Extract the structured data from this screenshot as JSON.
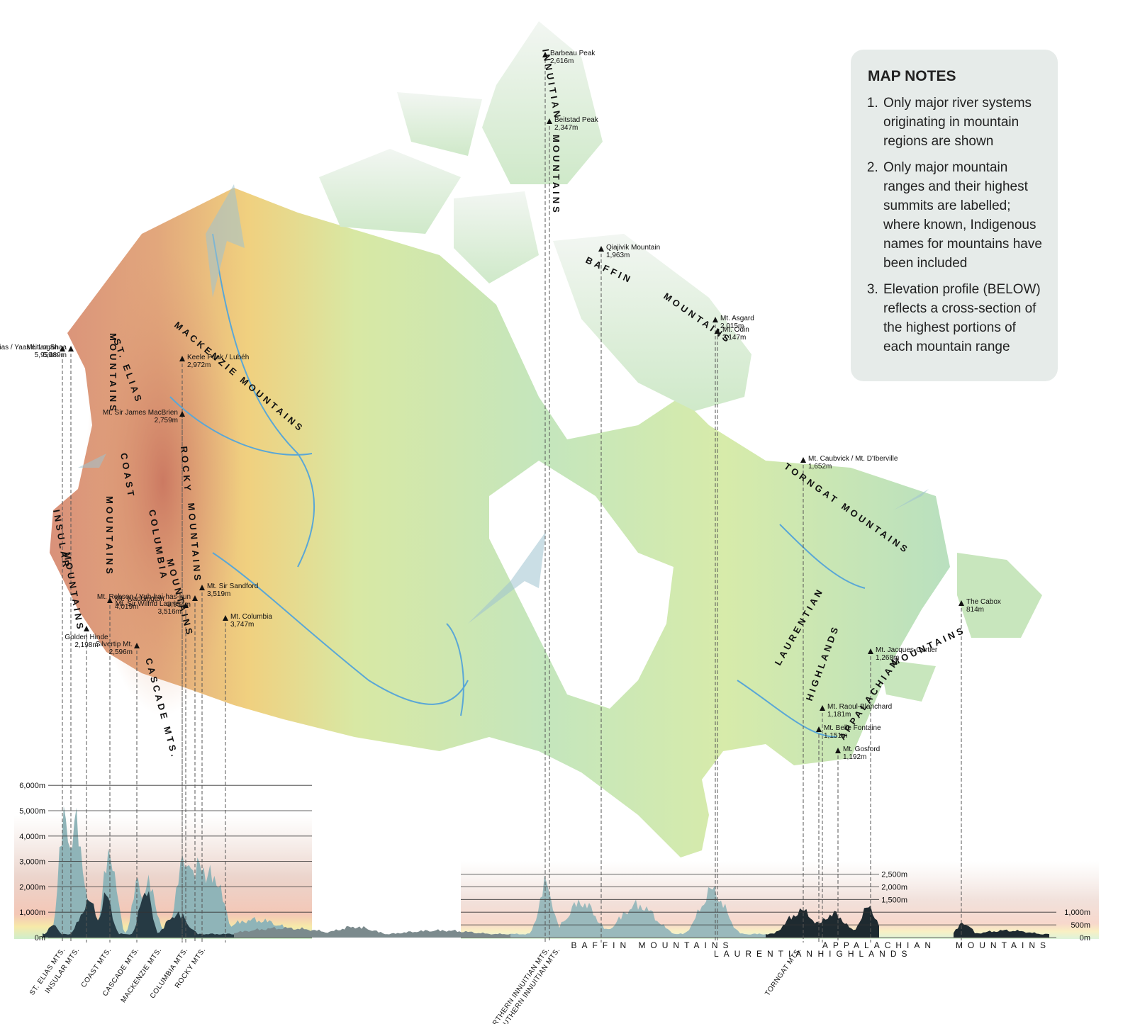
{
  "map_notes": {
    "title": "MAP NOTES",
    "notes": [
      "Only major river systems originating in mountain regions are shown",
      "Only major mountain ranges and their highest summits are labelled; where known, Indigenous names for mountains have been included",
      "Elevation profile (BELOW) reflects a cross-section of the highest portions of each mountain range"
    ]
  },
  "map": {
    "ranges": [
      "MACKENZIE MOUNTAINS",
      "ST. ELIAS",
      "MOUNTAINS",
      "COAST",
      "MOUNTAINS",
      "ROCKY",
      "MOUNTAINS",
      "COLUMBIA",
      "MOUNTAINS",
      "INSULAR",
      "MOUNTAINS",
      "CASCADE MTS.",
      "INNUITIAN",
      "MOUNTAINS",
      "BAFFIN",
      "MOUNTAINS",
      "TORNGAT MOUNTAINS",
      "LAURENTIAN",
      "HIGHLANDS",
      "APPALACHIAN",
      "MOUNTAINS"
    ],
    "peaks": [
      {
        "name": "Mt. Logan",
        "elevation": "5,959m"
      },
      {
        "name": "Mt. St. Elias / Yaas'éit'aa Shaa",
        "elevation": "5,489m"
      },
      {
        "name": "Keele Peak / Lubéh",
        "elevation": "2,972m"
      },
      {
        "name": "Mt. Sir James MacBrien",
        "elevation": "2,759m"
      },
      {
        "name": "Mt. Waddington",
        "elevation": "4,019m"
      },
      {
        "name": "Mt. Robson / Yuh-hai-has-kun",
        "elevation": "3,954m"
      },
      {
        "name": "Mt. Sir Sandford",
        "elevation": "3,519m"
      },
      {
        "name": "Mt. Sir Wilfrid Laurier",
        "elevation": "3,516m"
      },
      {
        "name": "Mt. Columbia",
        "elevation": "3,747m"
      },
      {
        "name": "Golden Hinde",
        "elevation": "2,198m"
      },
      {
        "name": "Silvertip Mt.",
        "elevation": "2,596m"
      },
      {
        "name": "Barbeau Peak",
        "elevation": "2,616m"
      },
      {
        "name": "Beitstad Peak",
        "elevation": "2,347m"
      },
      {
        "name": "Qiajivik Mountain",
        "elevation": "1,963m"
      },
      {
        "name": "Mt. Asgard",
        "elevation": "2,015m"
      },
      {
        "name": "Mt. Odin",
        "elevation": "2,147m"
      },
      {
        "name": "Mt. Caubvick / Mt. D'Iberville",
        "elevation": "1,652m"
      },
      {
        "name": "The Cabox",
        "elevation": "814m"
      },
      {
        "name": "Mt. Jacques-Cartier",
        "elevation": "1,268m"
      },
      {
        "name": "Mt. Raoul-Blanchard",
        "elevation": "1,181m"
      },
      {
        "name": "Mt. Belle Fontaine",
        "elevation": "1,151m"
      },
      {
        "name": "Mt. Gosford",
        "elevation": "1,192m"
      }
    ]
  },
  "profile": {
    "left_ticks": [
      {
        "value": 0,
        "label": "0m"
      },
      {
        "value": 1000,
        "label": "1,000m"
      },
      {
        "value": 2000,
        "label": "2,000m"
      },
      {
        "value": 3000,
        "label": "3,000m"
      },
      {
        "value": 4000,
        "label": "4,000m"
      },
      {
        "value": 5000,
        "label": "5,000m"
      },
      {
        "value": 6000,
        "label": "6,000m"
      }
    ],
    "middle_ticks": [
      {
        "value": 2500,
        "label": "2,500m"
      },
      {
        "value": 2000,
        "label": "2,000m"
      },
      {
        "value": 1500,
        "label": "1,500m"
      }
    ],
    "right_ticks": [
      {
        "value": 1000,
        "label": "1,000m"
      },
      {
        "value": 500,
        "label": "500m"
      },
      {
        "value": 0,
        "label": "0m"
      }
    ],
    "range_labels": [
      "ST. ELIAS MTS.",
      "INSULAR MTS.",
      "COAST MTS.",
      "CASCADE MTS.",
      "MACKENZIE MTS.",
      "COLUMBIA MTS.",
      "ROCKY MTS.",
      "NORTHERN INNUITIAN MTS.",
      "SOUTHERN INNUITIAN MTS.",
      "TORNGAT MTS."
    ],
    "wide_labels": [
      "BAFFIN MOUNTAINS",
      "LAURENTIAN",
      "APPALACHIAN",
      "HIGHLANDS",
      "MOUNTAINS"
    ]
  }
}
